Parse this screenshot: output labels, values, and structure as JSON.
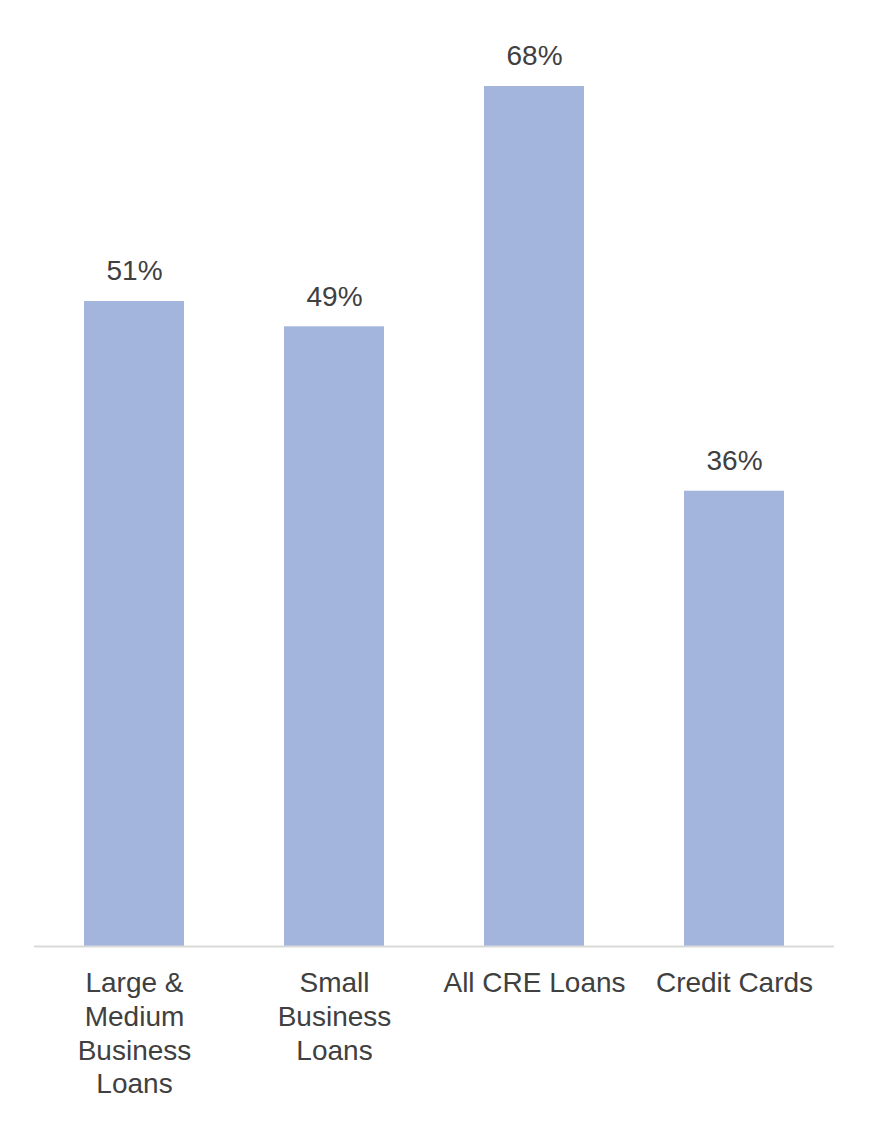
{
  "chart_data": {
    "type": "bar",
    "categories": [
      "Large & Medium Business Loans",
      "Small Business Loans",
      "All CRE Loans",
      "Credit Cards"
    ],
    "values": [
      51,
      49,
      68,
      36
    ],
    "value_labels": [
      "51%",
      "49%",
      "68%",
      "36%"
    ],
    "color": "#a4b5dd",
    "ylim": [
      0,
      68
    ],
    "yticks": [],
    "grid": false,
    "data_labels": true,
    "tick_labels": "x"
  }
}
